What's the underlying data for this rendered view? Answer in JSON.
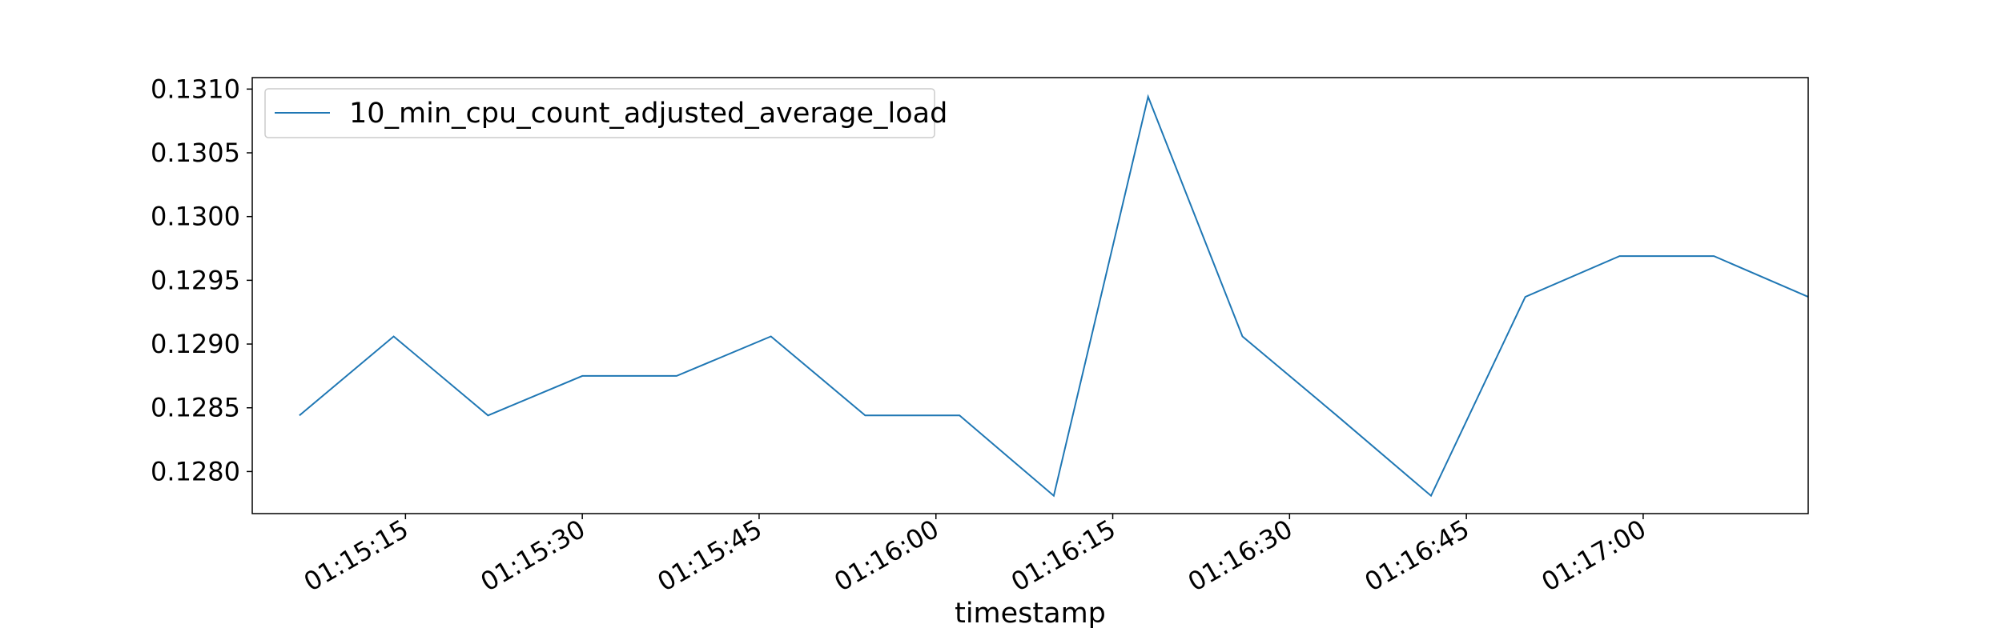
{
  "chart_data": {
    "type": "line",
    "title": "",
    "xlabel": "timestamp",
    "ylabel": "",
    "x": [
      "01:15:06",
      "01:15:14",
      "01:15:22",
      "01:15:30",
      "01:15:38",
      "01:15:46",
      "01:15:54",
      "01:16:02",
      "01:16:10",
      "01:16:18",
      "01:16:26",
      "01:16:34",
      "01:16:42",
      "01:16:50",
      "01:16:58",
      "01:17:06",
      "01:17:14"
    ],
    "series": [
      {
        "name": "10_min_cpu_count_adjusted_average_load",
        "color": "#1f77b4",
        "values": [
          0.12844,
          0.12906,
          0.12844,
          0.12875,
          0.12875,
          0.12906,
          0.12844,
          0.12844,
          0.12781,
          0.13094,
          0.12906,
          0.12844,
          0.12781,
          0.12937,
          0.12969,
          0.12969,
          0.12937
        ]
      }
    ],
    "xlim": [
      "01:15:02",
      "01:17:14"
    ],
    "ylim": [
      0.12767,
      0.13109
    ],
    "x_ticks": [
      "01:15:15",
      "01:15:30",
      "01:15:45",
      "01:16:00",
      "01:16:15",
      "01:16:30",
      "01:16:45",
      "01:17:00"
    ],
    "y_ticks": [
      "0.1280",
      "0.1285",
      "0.1290",
      "0.1295",
      "0.1300",
      "0.1305",
      "0.1310"
    ],
    "grid": false,
    "legend_position": "upper-left"
  }
}
